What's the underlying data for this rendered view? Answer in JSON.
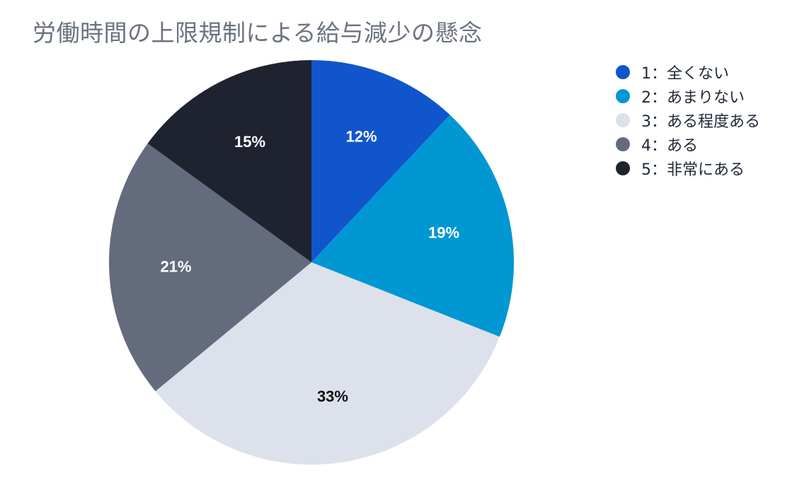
{
  "chart_data": {
    "type": "pie",
    "title": "労働時間の上限規制による給与減少の懸念",
    "categories": [
      "1：全くない",
      "2：あまりない",
      "3：ある程度ある",
      "4：ある",
      "5：非常にある"
    ],
    "values": [
      12,
      19,
      33,
      21,
      15
    ],
    "value_labels": [
      "12%",
      "19%",
      "33%",
      "21%",
      "15%"
    ],
    "colors": [
      "#1155cc",
      "#0097d3",
      "#dde1ec",
      "#646b7d",
      "#1f2330"
    ],
    "label_colors": [
      "#ffffff",
      "#ffffff",
      "#111111",
      "#ffffff",
      "#ffffff"
    ],
    "legend_position": "right",
    "start_angle": "top",
    "direction": "clockwise"
  }
}
